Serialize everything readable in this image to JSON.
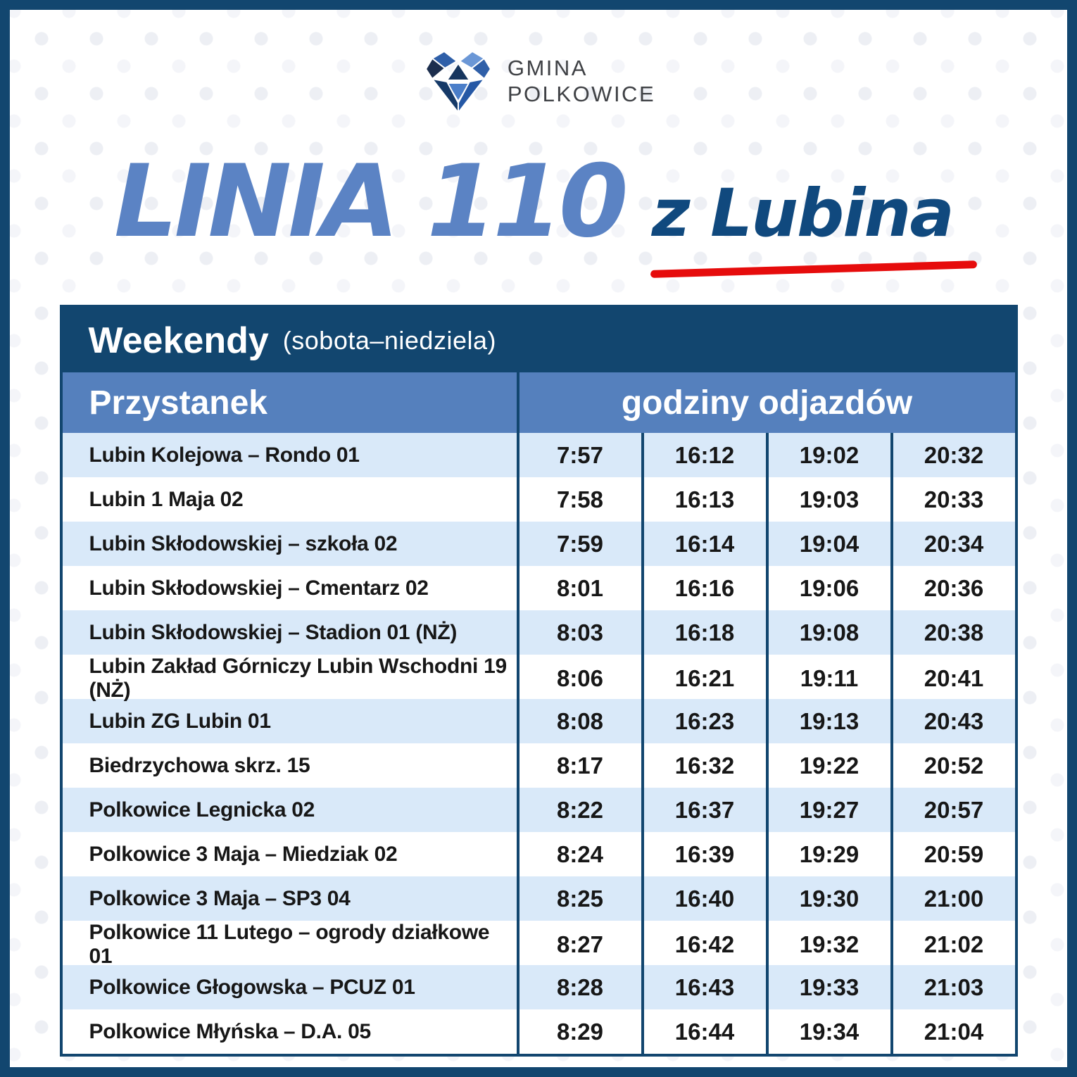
{
  "logo": {
    "line1": "GMINA",
    "line2": "POLKOWICE"
  },
  "title": {
    "main": "LINIA 110",
    "suffix": "z Lubina"
  },
  "table": {
    "section_title": "Weekendy",
    "section_subtitle": "(sobota–niedziela)",
    "col_stop": "Przystanek",
    "col_times": "godziny odjazdów",
    "rows": [
      {
        "stop": "Lubin Kolejowa – Rondo 01",
        "times": [
          "7:57",
          "16:12",
          "19:02",
          "20:32"
        ]
      },
      {
        "stop": "Lubin 1 Maja 02",
        "times": [
          "7:58",
          "16:13",
          "19:03",
          "20:33"
        ]
      },
      {
        "stop": "Lubin Skłodowskiej – szkoła 02",
        "times": [
          "7:59",
          "16:14",
          "19:04",
          "20:34"
        ]
      },
      {
        "stop": "Lubin Skłodowskiej – Cmentarz 02",
        "times": [
          "8:01",
          "16:16",
          "19:06",
          "20:36"
        ]
      },
      {
        "stop": "Lubin Skłodowskiej – Stadion 01 (NŻ)",
        "times": [
          "8:03",
          "16:18",
          "19:08",
          "20:38"
        ]
      },
      {
        "stop": "Lubin Zakład Górniczy Lubin Wschodni 19 (NŻ)",
        "times": [
          "8:06",
          "16:21",
          "19:11",
          "20:41"
        ]
      },
      {
        "stop": "Lubin ZG Lubin 01",
        "times": [
          "8:08",
          "16:23",
          "19:13",
          "20:43"
        ]
      },
      {
        "stop": "Biedrzychowa skrz. 15",
        "times": [
          "8:17",
          "16:32",
          "19:22",
          "20:52"
        ]
      },
      {
        "stop": "Polkowice Legnicka 02",
        "times": [
          "8:22",
          "16:37",
          "19:27",
          "20:57"
        ]
      },
      {
        "stop": "Polkowice 3 Maja – Miedziak 02",
        "times": [
          "8:24",
          "16:39",
          "19:29",
          "20:59"
        ]
      },
      {
        "stop": "Polkowice 3 Maja – SP3 04",
        "times": [
          "8:25",
          "16:40",
          "19:30",
          "21:00"
        ]
      },
      {
        "stop": "Polkowice 11 Lutego – ogrody działkowe 01",
        "times": [
          "8:27",
          "16:42",
          "19:32",
          "21:02"
        ]
      },
      {
        "stop": "Polkowice Głogowska – PCUZ 01",
        "times": [
          "8:28",
          "16:43",
          "19:33",
          "21:03"
        ]
      },
      {
        "stop": "Polkowice Młyńska – D.A. 05",
        "times": [
          "8:29",
          "16:44",
          "19:34",
          "21:04"
        ]
      }
    ]
  },
  "colors": {
    "navy": "#12466f",
    "medium_blue": "#5580bd",
    "light_row": "#d9e9f9",
    "title_blue": "#5b83c4",
    "dark_blue": "#10497e",
    "red": "#e60c0c"
  }
}
